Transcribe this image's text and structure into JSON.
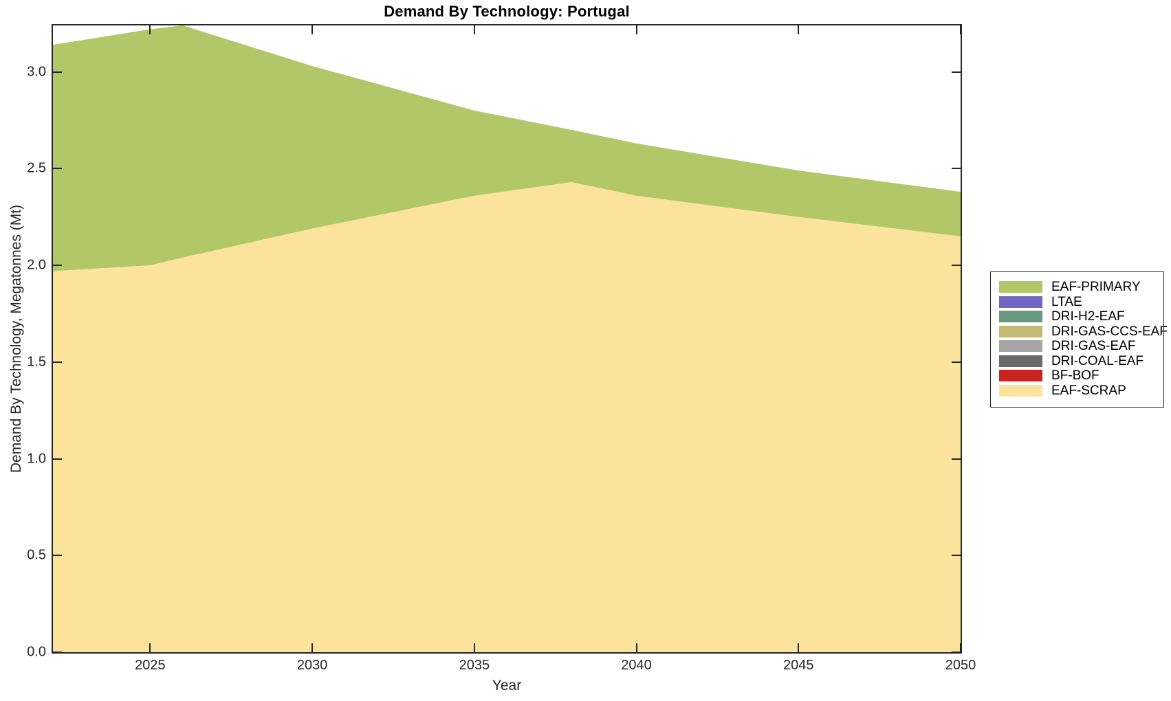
{
  "figure": {
    "background": "#ffffff",
    "axis_color": "#262626"
  },
  "chart_data": {
    "type": "area",
    "stacked": true,
    "title": "Demand By Technology: Portugal",
    "xlabel": "Year",
    "ylabel": "Demand By Technology, Megatonnes (Mt)",
    "xlim": [
      2022,
      2050
    ],
    "ylim": [
      0,
      3.24
    ],
    "grid": false,
    "legend_position": "right-outside",
    "x_ticks": [
      2025,
      2030,
      2035,
      2040,
      2045,
      2050
    ],
    "x_tick_labels": [
      "2025",
      "2030",
      "2035",
      "2040",
      "2045",
      "2050"
    ],
    "y_ticks": [
      0,
      0.5,
      1,
      1.5,
      2,
      2.5,
      3
    ],
    "y_tick_labels": [
      "0.0",
      "0.5",
      "1.0",
      "1.5",
      "2.0",
      "2.5",
      "3.0"
    ],
    "x": [
      2022,
      2025,
      2026,
      2030,
      2035,
      2038,
      2040,
      2045,
      2050
    ],
    "series": [
      {
        "name": "EAF-SCRAP",
        "color": "#fbe39c",
        "values": [
          1.97,
          2.0,
          2.04,
          2.19,
          2.36,
          2.43,
          2.36,
          2.25,
          2.15
        ]
      },
      {
        "name": "BF-BOF",
        "color": "#c72420",
        "values": [
          0,
          0,
          0,
          0,
          0,
          0,
          0,
          0,
          0
        ]
      },
      {
        "name": "DRI-COAL-EAF",
        "color": "#696969",
        "values": [
          0,
          0,
          0,
          0,
          0,
          0,
          0,
          0,
          0
        ]
      },
      {
        "name": "DRI-GAS-EAF",
        "color": "#a6a6a6",
        "values": [
          0,
          0,
          0,
          0,
          0,
          0,
          0,
          0,
          0
        ]
      },
      {
        "name": "DRI-GAS-CCS-EAF",
        "color": "#c2b973",
        "values": [
          0,
          0,
          0,
          0,
          0,
          0,
          0,
          0,
          0
        ]
      },
      {
        "name": "DRI-H2-EAF",
        "color": "#67997d",
        "values": [
          0,
          0,
          0,
          0,
          0,
          0,
          0,
          0,
          0
        ]
      },
      {
        "name": "LTAE",
        "color": "#7366c2",
        "values": [
          0,
          0,
          0,
          0,
          0,
          0,
          0,
          0,
          0
        ]
      },
      {
        "name": "EAF-PRIMARY",
        "color": "#b2c767",
        "values": [
          1.17,
          1.22,
          1.2,
          0.84,
          0.44,
          0.27,
          0.27,
          0.24,
          0.23
        ]
      }
    ],
    "legend": [
      {
        "label": "EAF-PRIMARY",
        "color": "#b2c767"
      },
      {
        "label": "LTAE",
        "color": "#7366c2"
      },
      {
        "label": "DRI-H2-EAF",
        "color": "#67997d"
      },
      {
        "label": "DRI-GAS-CCS-EAF",
        "color": "#c2b973"
      },
      {
        "label": "DRI-GAS-EAF",
        "color": "#a6a6a6"
      },
      {
        "label": "DRI-COAL-EAF",
        "color": "#696969"
      },
      {
        "label": "BF-BOF",
        "color": "#c72420"
      },
      {
        "label": "EAF-SCRAP",
        "color": "#fbe39c"
      }
    ]
  }
}
